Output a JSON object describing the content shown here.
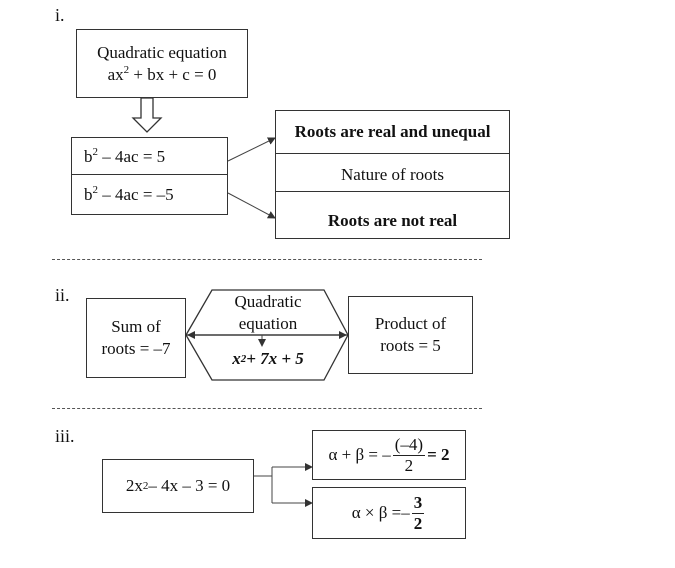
{
  "sections": {
    "i": {
      "label": "i.",
      "equation_box": {
        "line1": "Quadratic equation",
        "line2_a": "ax",
        "line2_sup": "2",
        "line2_b": " + bx + c = 0"
      },
      "disc_rows": [
        {
          "pre": "b",
          "sup": "2",
          "post": " – 4ac = 5"
        },
        {
          "pre": "b",
          "sup": "2",
          "post": " – 4ac = –5"
        }
      ],
      "nature_rows": [
        "Roots are real and unequal",
        "Nature of roots",
        "Roots are not real"
      ]
    },
    "ii": {
      "label": "ii.",
      "sum_box": {
        "line1": "Sum of",
        "line2": "roots = –7"
      },
      "hex_top": {
        "line1": "Quadratic",
        "line2": "equation"
      },
      "hex_bottom": {
        "pre": "x",
        "sup": "2",
        "post": " + 7x + 5"
      },
      "product_box": {
        "line1": "Product of",
        "line2": "roots = 5"
      }
    },
    "iii": {
      "label": "iii.",
      "equation": {
        "pre": "2x",
        "sup": "2",
        "post": " – 4x – 3 = 0"
      },
      "sum_result": {
        "lhs": "α + β = –",
        "num": "(–4)",
        "den": "2",
        "rhs": "= 2"
      },
      "product_result": {
        "lhs": "α × β =–",
        "num": "3",
        "den": "2"
      }
    }
  }
}
